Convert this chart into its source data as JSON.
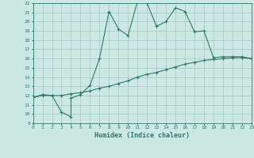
{
  "xlabel": "Humidex (Indice chaleur)",
  "bg_color": "#cce8e2",
  "line_color": "#2d7a6e",
  "grid_color": "#aacccc",
  "x_min": 0,
  "x_max": 23,
  "y_min": 9,
  "y_max": 22,
  "line1_x": [
    0,
    1,
    2,
    3,
    4,
    4,
    5,
    6,
    7,
    8,
    9,
    10,
    11,
    12,
    13,
    14,
    15,
    16,
    17,
    18,
    19,
    20,
    21,
    22,
    23
  ],
  "line1_y": [
    11.8,
    12.1,
    12.0,
    10.2,
    9.7,
    11.7,
    12.1,
    13.1,
    16.0,
    21.1,
    19.2,
    18.5,
    22.2,
    22.0,
    19.5,
    20.0,
    21.5,
    21.1,
    18.9,
    19.0,
    16.1,
    16.2,
    16.2,
    16.2,
    16.0
  ],
  "line2_x": [
    0,
    1,
    2,
    3,
    4,
    5,
    6,
    7,
    8,
    9,
    10,
    11,
    12,
    13,
    14,
    15,
    16,
    17,
    18,
    19,
    20,
    21,
    22,
    23
  ],
  "line2_y": [
    11.8,
    12.0,
    12.0,
    12.0,
    12.2,
    12.3,
    12.5,
    12.8,
    13.0,
    13.3,
    13.6,
    14.0,
    14.3,
    14.5,
    14.8,
    15.1,
    15.4,
    15.6,
    15.8,
    15.9,
    16.0,
    16.1,
    16.1,
    16.0
  ]
}
